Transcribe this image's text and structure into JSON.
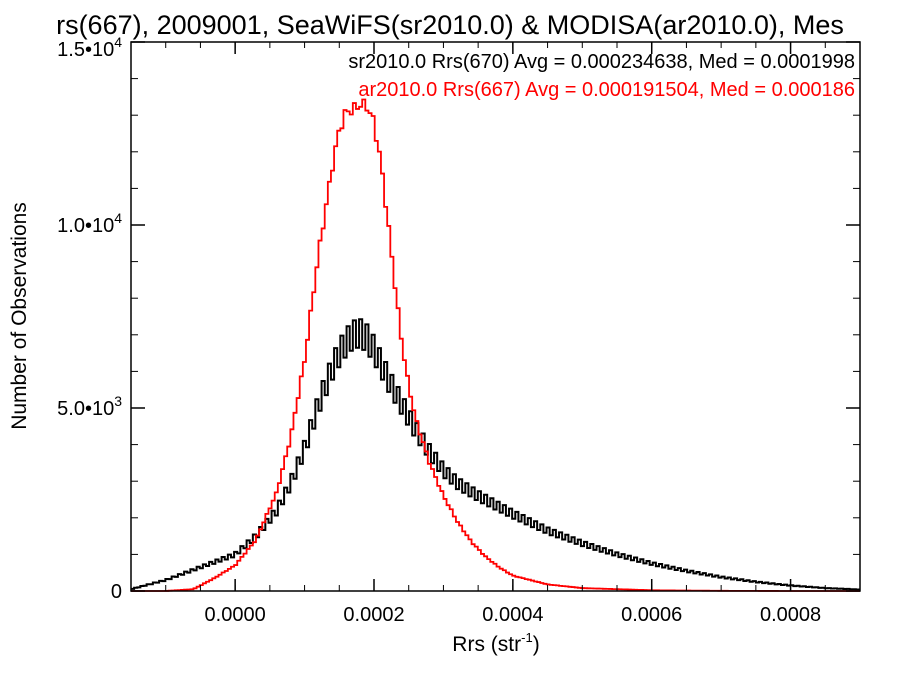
{
  "chart_data": {
    "type": "line",
    "title": "rs(667), 2009001, SeaWiFS(sr2010.0) & MODISA(ar2010.0), Mes",
    "xlabel": "Rrs (str",
    "xlabel_sup": "-1",
    "xlabel_end": ")",
    "ylabel": "Number of Observations",
    "xlim": [
      -0.00015,
      0.0009
    ],
    "ylim": [
      0,
      15000
    ],
    "grid": false,
    "legend_position": "top-right",
    "x_ticks": [
      {
        "value": 0.0,
        "label": "0.0000"
      },
      {
        "value": 0.0002,
        "label": "0.0002"
      },
      {
        "value": 0.0004,
        "label": "0.0004"
      },
      {
        "value": 0.0006,
        "label": "0.0006"
      },
      {
        "value": 0.0008,
        "label": "0.0008"
      }
    ],
    "y_ticks": [
      {
        "value": 0,
        "base": "0",
        "exp": ""
      },
      {
        "value": 5000,
        "base": "5.0•10",
        "exp": "3"
      },
      {
        "value": 10000,
        "base": "1.0•10",
        "exp": "4"
      },
      {
        "value": 15000,
        "base": "1.5•10",
        "exp": "4"
      }
    ],
    "series": [
      {
        "name": "sr2010.0 Rrs(670) Avg = 0.000234638, Med = 0.0001998",
        "color": "#000000",
        "x": [
          -0.00015,
          -0.0001,
          -5e-05,
          0.0,
          3e-05,
          6e-05,
          8e-05,
          0.0001,
          0.00012,
          0.00014,
          0.00015,
          0.00016,
          0.00017,
          0.00018,
          0.00019,
          0.0002,
          0.00021,
          0.00022,
          0.00024,
          0.00026,
          0.00028,
          0.0003,
          0.00032,
          0.00035,
          0.0004,
          0.00045,
          0.0005,
          0.00055,
          0.0006,
          0.00065,
          0.0007,
          0.00075,
          0.0008,
          0.00085,
          0.0009
        ],
        "values": [
          50,
          300,
          650,
          1000,
          1500,
          2200,
          2950,
          3900,
          5100,
          6100,
          6500,
          6800,
          7000,
          7050,
          6900,
          6600,
          6200,
          5800,
          5100,
          4400,
          3800,
          3300,
          2950,
          2600,
          2100,
          1650,
          1300,
          1000,
          750,
          550,
          380,
          250,
          150,
          80,
          40
        ]
      },
      {
        "name": "ar2010.0 Rrs(667) Avg = 0.000191504, Med = 0.000186",
        "color": "#ff0000",
        "x": [
          -0.00015,
          -0.0001,
          -6e-05,
          -3e-05,
          0.0,
          3e-05,
          6e-05,
          8e-05,
          0.0001,
          0.00012,
          0.00014,
          0.00015,
          0.00016,
          0.00017,
          0.00018,
          0.00019,
          0.0002,
          0.00021,
          0.00022,
          0.00023,
          0.00024,
          0.00025,
          0.00026,
          0.00028,
          0.0003,
          0.00032,
          0.00034,
          0.00036,
          0.00038,
          0.0004,
          0.00045,
          0.0005,
          0.0006,
          0.0007,
          0.0008,
          0.0009
        ],
        "values": [
          0,
          0,
          50,
          350,
          700,
          1400,
          2700,
          4200,
          6300,
          9200,
          11600,
          12600,
          13100,
          13150,
          13300,
          13250,
          12800,
          11700,
          10100,
          8400,
          6800,
          5600,
          4700,
          3500,
          2600,
          1900,
          1350,
          950,
          650,
          420,
          180,
          80,
          20,
          5,
          0,
          0
        ]
      }
    ]
  }
}
